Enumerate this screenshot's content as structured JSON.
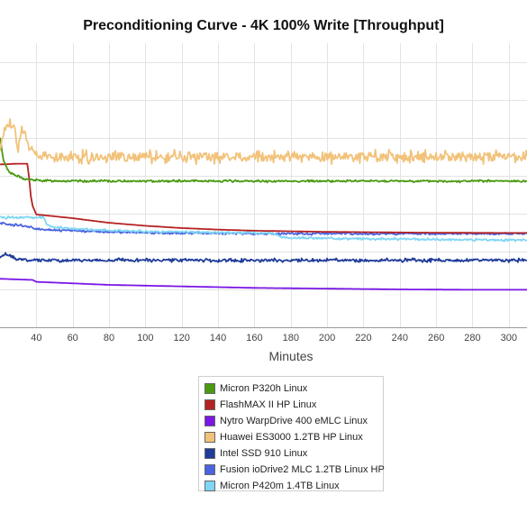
{
  "chart_data": {
    "type": "line",
    "title": "Preconditioning Curve - 4K 100% Write [Throughput]",
    "xlabel": "Minutes",
    "ylabel": "",
    "xlim": [
      20,
      310
    ],
    "ylim": [
      0,
      750
    ],
    "x_ticks": [
      40,
      60,
      80,
      100,
      120,
      140,
      160,
      180,
      200,
      220,
      240,
      260,
      280,
      300
    ],
    "grid": true,
    "legend_position": "bottom-center",
    "series": [
      {
        "name": "Micron P320h Linux",
        "color": "#4a9a12",
        "x": [
          20,
          22,
          24,
          26,
          28,
          30,
          33,
          36,
          40,
          45,
          50,
          60,
          80,
          100,
          150,
          200,
          250,
          300,
          310
        ],
        "y": [
          500,
          440,
          418,
          408,
          402,
          398,
          392,
          390,
          388,
          387,
          387,
          386,
          386,
          386,
          386,
          386,
          386,
          386,
          386
        ],
        "noise": 2
      },
      {
        "name": "FlashMAX II HP Linux",
        "color": "#b52222",
        "x": [
          20,
          30,
          35,
          36,
          37,
          38,
          40,
          60,
          80,
          100,
          120,
          140,
          160,
          200,
          250,
          300,
          310
        ],
        "y": [
          430,
          432,
          432,
          395,
          345,
          320,
          298,
          288,
          276,
          268,
          262,
          258,
          255,
          252,
          250,
          249,
          249
        ],
        "noise": 0
      },
      {
        "name": "Nytro WarpDrive 400 eMLC Linux",
        "color": "#7a16e6",
        "x": [
          20,
          38,
          40,
          80,
          120,
          160,
          200,
          240,
          280,
          310
        ],
        "y": [
          128,
          125,
          120,
          112,
          108,
          104,
          102,
          100,
          99,
          99
        ],
        "noise": 0
      },
      {
        "name": "Huawei ES3000 1.2TB HP Linux",
        "color": "#f2c27a",
        "x": [
          20,
          22,
          24,
          26,
          28,
          30,
          32,
          34,
          36,
          40,
          45,
          50,
          100,
          150,
          200,
          250,
          300,
          310
        ],
        "y": [
          470,
          520,
          540,
          535,
          520,
          470,
          520,
          505,
          470,
          460,
          450,
          450,
          450,
          450,
          450,
          450,
          450,
          450
        ],
        "noise": 11
      },
      {
        "name": "Intel SSD 910 Linux",
        "color": "#1f3c9a",
        "x": [
          20,
          23,
          25,
          30,
          35,
          40,
          80,
          160,
          240,
          310
        ],
        "y": [
          185,
          195,
          190,
          180,
          178,
          177,
          177,
          177,
          177,
          177
        ],
        "noise": 3
      },
      {
        "name": "Fusion ioDrive2 MLC 1.2TB Linux HP",
        "color": "#4a63e0",
        "x": [
          20,
          25,
          30,
          35,
          40,
          45,
          60,
          80,
          100,
          120,
          150,
          200,
          250,
          300,
          310
        ],
        "y": [
          275,
          272,
          270,
          265,
          260,
          258,
          255,
          252,
          250,
          249,
          248,
          247,
          247,
          247,
          247
        ],
        "noise": 2
      },
      {
        "name": "Micron P420m 1.4TB Linux",
        "color": "#7fd6f5",
        "x": [
          20,
          40,
          44,
          46,
          48,
          50,
          60,
          80,
          100,
          120,
          150,
          170,
          175,
          180,
          220,
          260,
          300,
          310
        ],
        "y": [
          290,
          290,
          290,
          270,
          266,
          264,
          260,
          256,
          253,
          252,
          250,
          249,
          237,
          236,
          234,
          232,
          230,
          230
        ],
        "noise": 2
      }
    ]
  }
}
